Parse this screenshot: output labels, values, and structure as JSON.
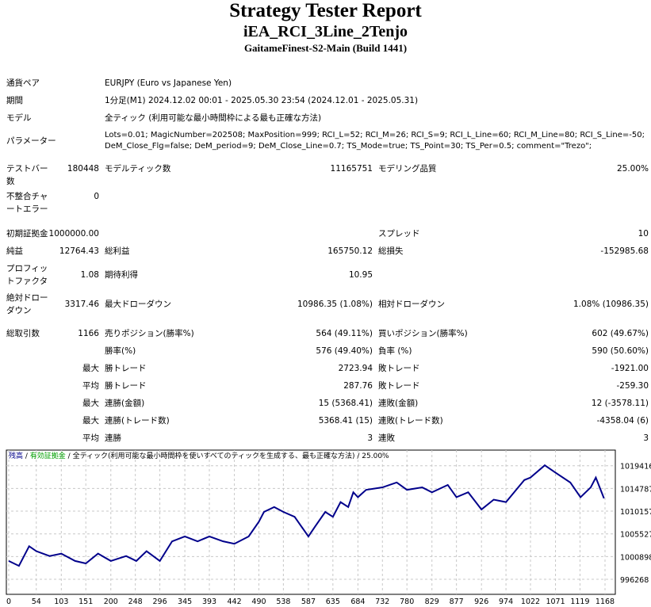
{
  "header": {
    "title": "Strategy Tester Report",
    "ea": "iEA_RCI_3Line_2Tenjo",
    "server": "GaitameFinest-S2-Main (Build 1441)"
  },
  "info": {
    "pair_label": "通貨ペア",
    "pair": "EURJPY (Euro vs Japanese Yen)",
    "period_label": "期間",
    "period": "1分足(M1) 2024.12.02 00:01 - 2025.05.30 23:54 (2024.12.01 - 2025.05.31)",
    "model_label": "モデル",
    "model": "全ティック (利用可能な最小時間枠による最も正確な方法)",
    "params_label": "パラメーター",
    "params1": "Lots=0.01; MagicNumber=202508; MaxPosition=999; RCI_L=52; RCI_M=26; RCI_S=9; RCI_L_Line=60; RCI_M_Line=80; RCI_S_Line=-50;",
    "params2": "DeM_Close_Flg=false; DeM_period=9; DeM_Close_Line=0.7; TS_Mode=true; TS_Point=30; TS_Per=0.5; comment=\"Trezo\";"
  },
  "stats": {
    "bars_label1": "テストバー",
    "bars_label2": "数",
    "bars": "180448",
    "ticks_label": "モデルティック数",
    "ticks": "11165751",
    "quality_label": "モデリング品質",
    "quality": "25.00%",
    "err_label1": "不整合チャ",
    "err_label2": "ートエラー",
    "errors": "0",
    "deposit_label": "初期証拠金",
    "deposit": "1000000.00",
    "spread_label": "スプレッド",
    "spread": "10",
    "net_label": "純益",
    "net": "12764.43",
    "gross_profit_label": "総利益",
    "gross_profit": "165750.12",
    "gross_loss_label": "総損失",
    "gross_loss": "-152985.68",
    "pf_label1": "プロフィッ",
    "pf_label2": "トファクタ",
    "pf": "1.08",
    "expected_label": "期待利得",
    "expected": "10.95",
    "abs_dd_label1": "絶対ドロー",
    "abs_dd_label2": "ダウン",
    "abs_dd": "3317.46",
    "max_dd_label": "最大ドローダウン",
    "max_dd": "10986.35 (1.08%)",
    "rel_dd_label": "相対ドローダウン",
    "rel_dd": "1.08% (10986.35)",
    "trades_label": "総取引数",
    "trades": "1166",
    "short_label": "売りポジション(勝率%)",
    "short": "564 (49.11%)",
    "long_label": "買いポジション(勝率%)",
    "long": "602 (49.67%)",
    "win_pct_label": "勝率(%)",
    "win_pct": "576 (49.40%)",
    "loss_pct_label": "負率 (%)",
    "loss_pct": "590 (50.60%)",
    "max1": "最大",
    "largest_win_label": "勝トレード",
    "largest_win": "2723.94",
    "largest_loss_label": "敗トレード",
    "largest_loss": "-1921.00",
    "avg1": "平均",
    "avg_win_label": "勝トレード",
    "avg_win": "287.76",
    "avg_loss_label": "敗トレード",
    "avg_loss": "-259.30",
    "max2": "最大",
    "cons_wins_label": "連勝(金額)",
    "cons_wins": "15 (5368.41)",
    "cons_losses_label": "連敗(金額)",
    "cons_losses": "12 (-3578.11)",
    "max3": "最大",
    "cons_profit_label": "連勝(トレード数)",
    "cons_profit": "5368.41 (15)",
    "cons_loss_label": "連敗(トレード数)",
    "cons_loss": "-4358.04 (6)",
    "avg2": "平均",
    "avg_cons_wins_label": "連勝",
    "avg_cons_wins": "3",
    "avg_cons_losses_label": "連敗",
    "avg_cons_losses": "3"
  },
  "chart_data": {
    "type": "line",
    "legend": {
      "balance": "残高",
      "equity": "有効証拠金",
      "sep": " / ",
      "desc": "全ティック(利用可能な最小時間枠を使いすべてのティックを生成する、最も正確な方法)",
      "quality": "25.00%"
    },
    "colors": {
      "balance": "#00008b",
      "equity": "#00a000",
      "grid": "#c8c8c8"
    },
    "xticks": [
      0,
      54,
      103,
      151,
      200,
      248,
      296,
      345,
      393,
      442,
      490,
      538,
      587,
      635,
      684,
      732,
      780,
      829,
      877,
      926,
      974,
      1022,
      1071,
      1119,
      1168
    ],
    "yticks": [
      996268,
      1000898,
      1005527,
      1010157,
      1014787,
      1019416
    ],
    "xlim": [
      0,
      1168
    ],
    "ylim": [
      993200,
      1022600
    ],
    "x": [
      0,
      20,
      40,
      54,
      80,
      103,
      130,
      151,
      175,
      200,
      230,
      250,
      270,
      296,
      320,
      345,
      370,
      393,
      420,
      442,
      470,
      490,
      500,
      520,
      538,
      560,
      587,
      600,
      620,
      635,
      650,
      665,
      675,
      684,
      700,
      732,
      760,
      780,
      810,
      829,
      860,
      877,
      900,
      926,
      950,
      974,
      990,
      1010,
      1022,
      1050,
      1071,
      1100,
      1120,
      1140,
      1150,
      1166
    ],
    "balance": [
      1000000,
      999000,
      1003000,
      1002000,
      1001000,
      1001500,
      1000000,
      999500,
      1001500,
      1000000,
      1001000,
      1000000,
      1002000,
      1000000,
      1004000,
      1005000,
      1004000,
      1005000,
      1004000,
      1003500,
      1005000,
      1008000,
      1010000,
      1011000,
      1010000,
      1009000,
      1005000,
      1007000,
      1010000,
      1009000,
      1012000,
      1011000,
      1014000,
      1013000,
      1014500,
      1015000,
      1016000,
      1014500,
      1015000,
      1014000,
      1015500,
      1013000,
      1014000,
      1010500,
      1012500,
      1012000,
      1014000,
      1016500,
      1017000,
      1019500,
      1018000,
      1016000,
      1013000,
      1015000,
      1017000,
      1012764
    ]
  }
}
